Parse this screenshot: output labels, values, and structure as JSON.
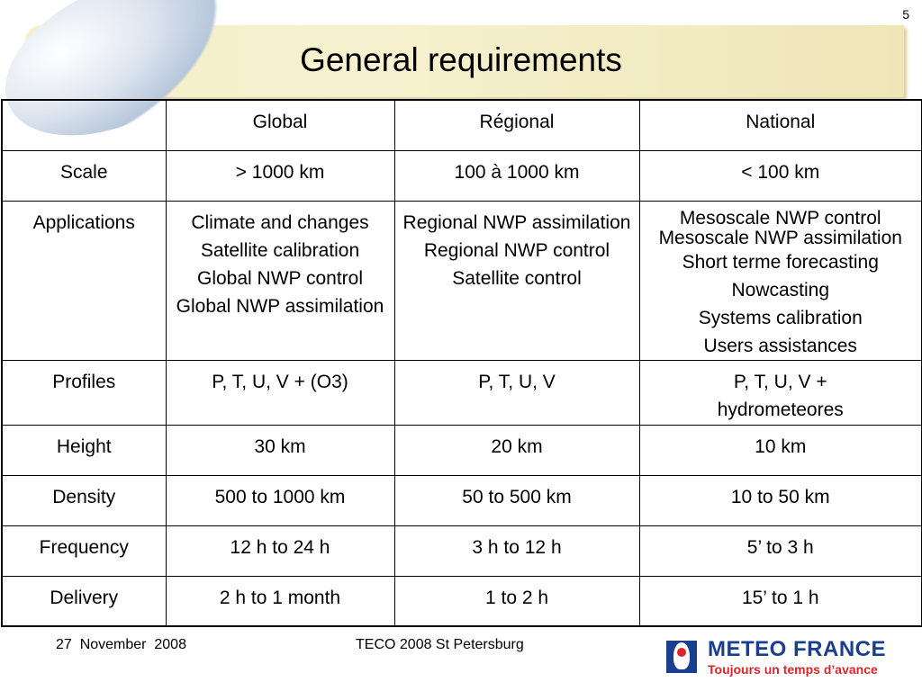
{
  "slide_number": "5",
  "title": "General requirements",
  "table": {
    "header": [
      "",
      "Global",
      "Régional",
      "National"
    ],
    "rows": [
      {
        "label": "Scale",
        "global": "> 1000 km",
        "regional": "100 à 1000 km",
        "national": "< 100 km"
      },
      {
        "label": "Applications",
        "global": [
          "Climate and changes",
          "Satellite calibration",
          "Global NWP control",
          "Global NWP assimilation"
        ],
        "regional": [
          "Regional NWP assimilation",
          "Regional NWP control",
          "Satellite control"
        ],
        "national": [
          "Mesoscale NWP control",
          "Mesoscale NWP assimilation",
          "Short terme forecasting",
          "Nowcasting",
          "Systems calibration",
          "Users assistances"
        ]
      },
      {
        "label": "Profiles",
        "global": "P, T, U, V + (O3)",
        "regional": "P, T, U, V",
        "national_line1": "P, T, U, V +",
        "national_line2": "hydrometeores"
      },
      {
        "label": "Height",
        "global": "30 km",
        "regional": "20 km",
        "national": "10 km"
      },
      {
        "label": "Density",
        "global": "500 to 1000 km",
        "regional": "50 to 500 km",
        "national": "10 to 50 km"
      },
      {
        "label": "Frequency",
        "global": "12 h to 24 h",
        "regional": "3 h to 12 h",
        "national": "5’ to 3 h"
      },
      {
        "label": "Delivery",
        "global": "2 h to 1 month",
        "regional": "1 to 2 h",
        "national": "15’ to 1 h"
      }
    ]
  },
  "footer": {
    "date": "27  November  2008",
    "event": "TECO 2008 St Petersburg"
  },
  "logo": {
    "name": "METEO FRANCE",
    "tagline": "Toujours un temps d’avance",
    "icon": "meteo-france-mark-icon"
  }
}
